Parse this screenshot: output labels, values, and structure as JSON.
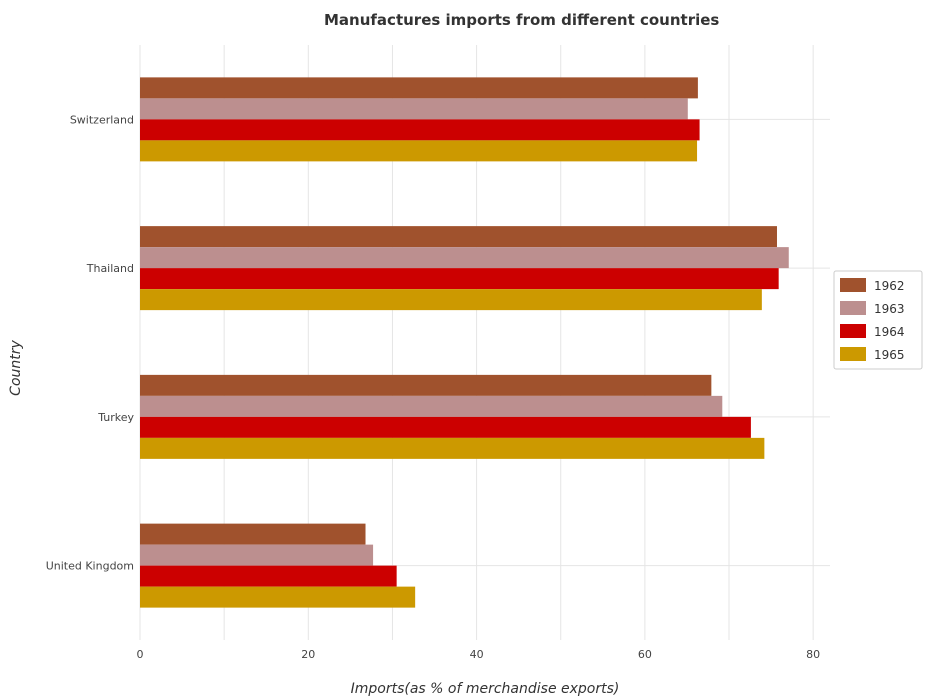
{
  "chart_data": {
    "type": "bar",
    "orientation": "horizontal",
    "title": "Manufactures imports from different countries",
    "xlabel": "Imports(as % of merchandise exports)",
    "ylabel": "Country",
    "categories": [
      "Switzerland",
      "Thailand",
      "Turkey",
      "United Kingdom"
    ],
    "xlim": [
      0,
      82
    ],
    "xticks": [
      0,
      20,
      40,
      60,
      80
    ],
    "grid": true,
    "legend_position": "right",
    "series": [
      {
        "name": "1962",
        "color": "#a0522d",
        "values": [
          66.3,
          75.7,
          67.9,
          26.8
        ]
      },
      {
        "name": "1963",
        "color": "#bc8f8f",
        "values": [
          65.1,
          77.1,
          69.2,
          27.7
        ]
      },
      {
        "name": "1964",
        "color": "#cc0000",
        "values": [
          66.5,
          75.9,
          72.6,
          30.5
        ]
      },
      {
        "name": "1965",
        "color": "#cc9900",
        "values": [
          66.2,
          73.9,
          74.2,
          32.7
        ]
      }
    ]
  }
}
